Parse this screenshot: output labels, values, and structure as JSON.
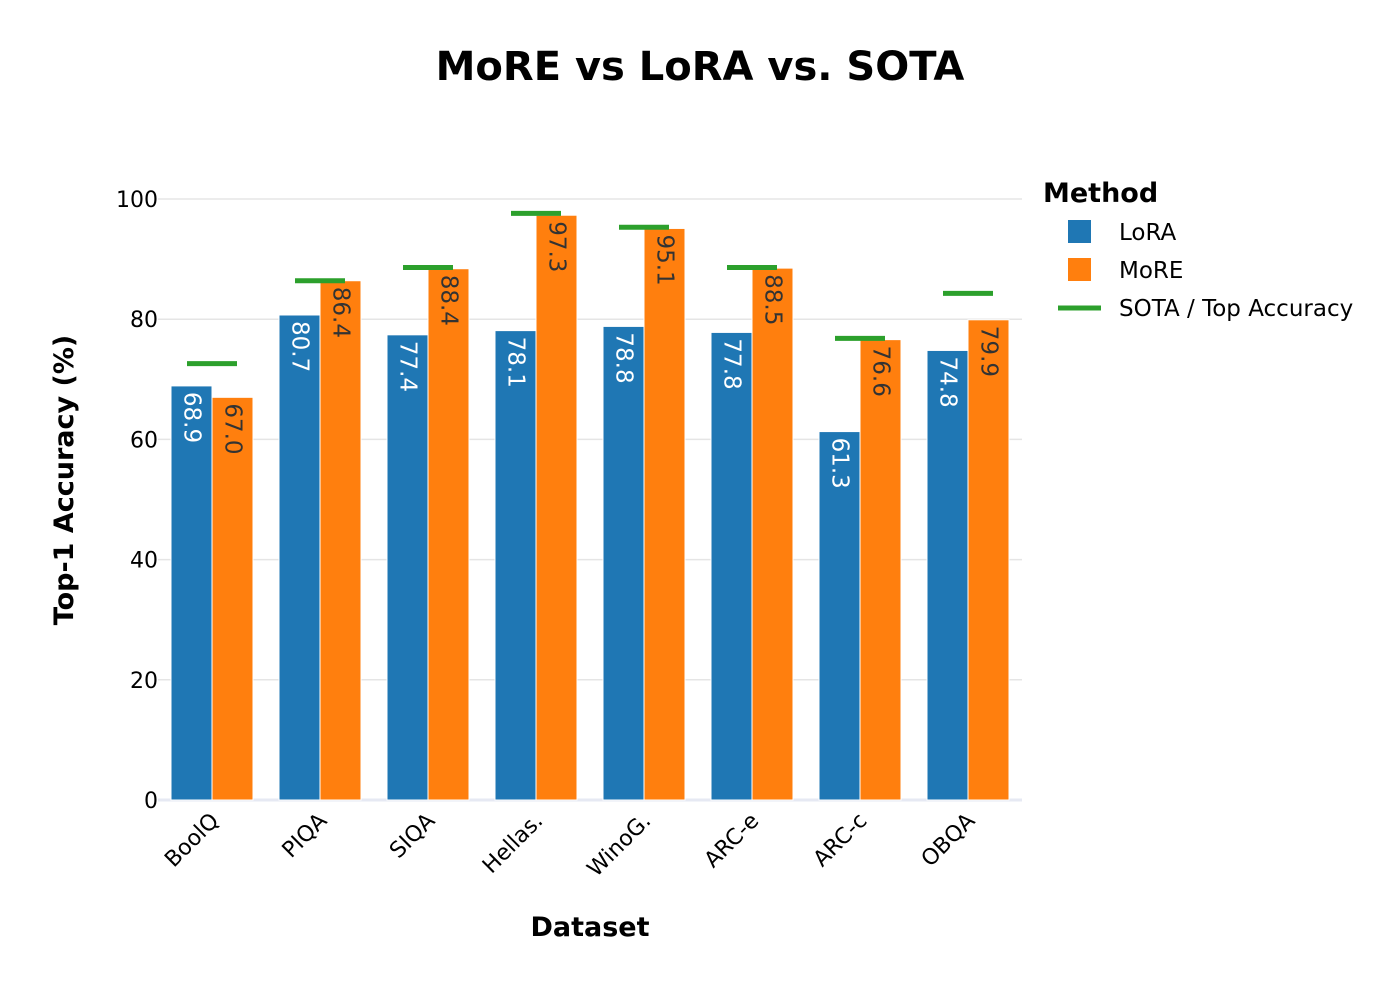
{
  "chart_data": {
    "type": "bar",
    "title": "MoRE vs LoRA vs. SOTA",
    "xlabel": "Dataset",
    "ylabel": "Top-1 Accuracy (%)",
    "ylim": [
      0,
      105
    ],
    "yticks": [
      0,
      20,
      40,
      60,
      80,
      100
    ],
    "grid": true,
    "legend_placement": "right",
    "legend_title": "Method",
    "categories": [
      "BoolQ",
      "PIQA",
      "SIQA",
      "Hellas.",
      "WinoG.",
      "ARC-e",
      "ARC-c",
      "OBQA"
    ],
    "series": [
      {
        "name": "LoRA",
        "color": "#1f77b4",
        "label_color": "#ffffff",
        "values": [
          68.9,
          80.7,
          77.4,
          78.1,
          78.8,
          77.8,
          61.3,
          74.8
        ]
      },
      {
        "name": "MoRE",
        "color": "#ff7f0e",
        "label_color": "#333333",
        "values": [
          67.0,
          86.4,
          88.4,
          97.3,
          95.1,
          88.5,
          76.6,
          79.9
        ]
      }
    ],
    "reference": {
      "name": "SOTA / Top Accuracy",
      "color": "#2ca02c",
      "values": [
        72.6,
        86.4,
        88.6,
        97.6,
        95.3,
        88.6,
        76.8,
        84.3
      ]
    }
  }
}
